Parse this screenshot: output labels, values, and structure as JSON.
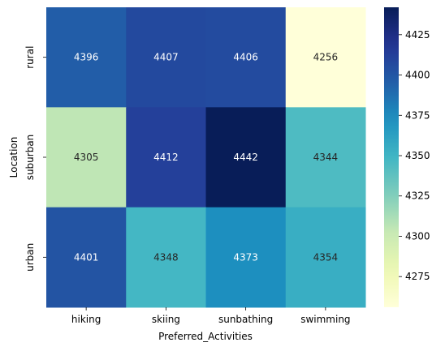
{
  "chart_data": {
    "type": "heatmap",
    "title": "",
    "xlabel": "Preferred_Activities",
    "ylabel": "Location",
    "x_categories": [
      "hiking",
      "skiing",
      "sunbathing",
      "swimming"
    ],
    "y_categories": [
      "rural",
      "suburban",
      "urban"
    ],
    "values": [
      [
        4396,
        4407,
        4406,
        4256
      ],
      [
        4305,
        4412,
        4442,
        4344
      ],
      [
        4401,
        4348,
        4373,
        4354
      ]
    ],
    "colormap": "YlGnBu",
    "colorbar": {
      "vmin": 4256,
      "vmax": 4442,
      "ticks": [
        4275,
        4300,
        4325,
        4350,
        4375,
        4400,
        4425
      ]
    },
    "annotations": true,
    "grid": false,
    "legend": "colorbar-right"
  }
}
